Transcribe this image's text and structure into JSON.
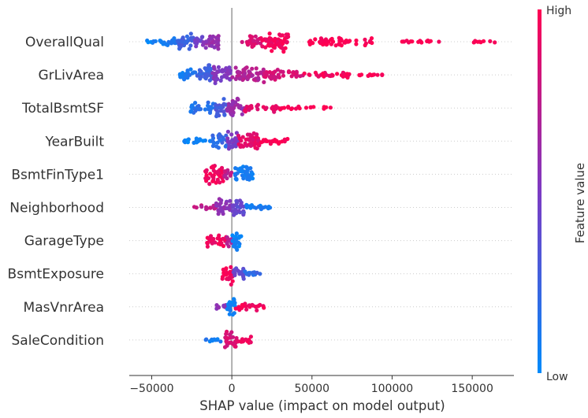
{
  "chart_data": {
    "type": "scatter",
    "subtype": "beeswarm",
    "title": "",
    "xlabel": "SHAP value (impact on model output)",
    "xlim": [
      -64000,
      176000
    ],
    "xticks": [
      -50000,
      0,
      50000,
      100000,
      150000
    ],
    "xtick_labels": [
      "−50000",
      "0",
      "50000",
      "100000",
      "150000"
    ],
    "zero_line": 0,
    "colorbar": {
      "title": "Feature value",
      "high_label": "High",
      "low_label": "Low",
      "low_color": "#008bfb",
      "mid_color": "#7c3ac3",
      "high_color": "#ff0052"
    },
    "features": [
      {
        "name": "OverallQual",
        "segments": [
          {
            "from": -53000,
            "to": -44000,
            "color": 0.05,
            "density": 0.25
          },
          {
            "from": -44000,
            "to": -34000,
            "color": 0.1,
            "density": 0.45
          },
          {
            "from": -34000,
            "to": -24000,
            "color": 0.25,
            "density": 1.0
          },
          {
            "from": -24000,
            "to": -18000,
            "color": 0.45,
            "density": 0.6
          },
          {
            "from": -18000,
            "to": -8000,
            "color": 0.6,
            "density": 0.85
          },
          {
            "from": 6000,
            "to": 18000,
            "color": 0.85,
            "density": 0.6
          },
          {
            "from": 18000,
            "to": 36000,
            "color": 0.95,
            "density": 0.95
          },
          {
            "from": 48000,
            "to": 88000,
            "color": 1.0,
            "density": 0.4
          },
          {
            "from": 106000,
            "to": 130000,
            "color": 1.0,
            "density": 0.18
          },
          {
            "from": 148000,
            "to": 165000,
            "color": 1.0,
            "density": 0.12
          }
        ]
      },
      {
        "name": "GrLivArea",
        "segments": [
          {
            "from": -33000,
            "to": -22000,
            "color": 0.1,
            "density": 0.55
          },
          {
            "from": -22000,
            "to": -12000,
            "color": 0.25,
            "density": 1.0
          },
          {
            "from": -12000,
            "to": 0,
            "color": 0.5,
            "density": 0.95
          },
          {
            "from": 0,
            "to": 20000,
            "color": 0.7,
            "density": 0.8
          },
          {
            "from": 20000,
            "to": 45000,
            "color": 0.85,
            "density": 0.5
          },
          {
            "from": 45000,
            "to": 75000,
            "color": 0.95,
            "density": 0.3
          },
          {
            "from": 75000,
            "to": 100000,
            "color": 1.0,
            "density": 0.12
          }
        ]
      },
      {
        "name": "TotalBsmtSF",
        "segments": [
          {
            "from": -26000,
            "to": -10000,
            "color": 0.15,
            "density": 0.55
          },
          {
            "from": -10000,
            "to": -3000,
            "color": 0.3,
            "density": 1.0
          },
          {
            "from": -3000,
            "to": 8000,
            "color": 0.6,
            "density": 0.85
          },
          {
            "from": 8000,
            "to": 30000,
            "color": 0.9,
            "density": 0.45
          },
          {
            "from": 30000,
            "to": 62000,
            "color": 1.0,
            "density": 0.15
          }
        ]
      },
      {
        "name": "YearBuilt",
        "segments": [
          {
            "from": -30000,
            "to": -12000,
            "color": 0.05,
            "density": 0.3
          },
          {
            "from": -12000,
            "to": -3000,
            "color": 0.2,
            "density": 0.7
          },
          {
            "from": -3000,
            "to": 4000,
            "color": 0.5,
            "density": 1.0
          },
          {
            "from": 4000,
            "to": 18000,
            "color": 0.9,
            "density": 0.85
          },
          {
            "from": 18000,
            "to": 36000,
            "color": 1.0,
            "density": 0.3
          }
        ]
      },
      {
        "name": "BsmtFinType1",
        "segments": [
          {
            "from": -17000,
            "to": -5000,
            "color": 0.95,
            "density": 0.9
          },
          {
            "from": -5000,
            "to": 0,
            "color": 0.75,
            "density": 0.6
          },
          {
            "from": 2000,
            "to": 13000,
            "color": 0.08,
            "density": 1.0
          }
        ]
      },
      {
        "name": "Neighborhood",
        "segments": [
          {
            "from": -24000,
            "to": -10000,
            "color": 0.75,
            "density": 0.25
          },
          {
            "from": -10000,
            "to": 0,
            "color": 0.55,
            "density": 0.8
          },
          {
            "from": 0,
            "to": 8000,
            "color": 0.4,
            "density": 1.0
          },
          {
            "from": 8000,
            "to": 24000,
            "color": 0.1,
            "density": 0.3
          }
        ]
      },
      {
        "name": "GarageType",
        "segments": [
          {
            "from": -16000,
            "to": -3000,
            "color": 0.95,
            "density": 0.6
          },
          {
            "from": -3000,
            "to": 0,
            "color": 0.7,
            "density": 0.8
          },
          {
            "from": 0,
            "to": 6000,
            "color": 0.05,
            "density": 1.0
          }
        ]
      },
      {
        "name": "BsmtExposure",
        "segments": [
          {
            "from": -6000,
            "to": 1000,
            "color": 0.95,
            "density": 1.0
          },
          {
            "from": 1000,
            "to": 8000,
            "color": 0.4,
            "density": 0.6
          },
          {
            "from": 8000,
            "to": 18000,
            "color": 0.2,
            "density": 0.3
          }
        ]
      },
      {
        "name": "MasVnrArea",
        "segments": [
          {
            "from": -10000,
            "to": -3000,
            "color": 0.55,
            "density": 0.25
          },
          {
            "from": -3000,
            "to": 2000,
            "color": 0.05,
            "density": 1.0
          },
          {
            "from": 2000,
            "to": 20000,
            "color": 0.95,
            "density": 0.35
          }
        ]
      },
      {
        "name": "SaleCondition",
        "segments": [
          {
            "from": -17000,
            "to": -5000,
            "color": 0.1,
            "density": 0.2
          },
          {
            "from": -5000,
            "to": 3000,
            "color": 0.85,
            "density": 1.0
          },
          {
            "from": 3000,
            "to": 16000,
            "color": 0.95,
            "density": 0.35
          }
        ]
      }
    ]
  }
}
